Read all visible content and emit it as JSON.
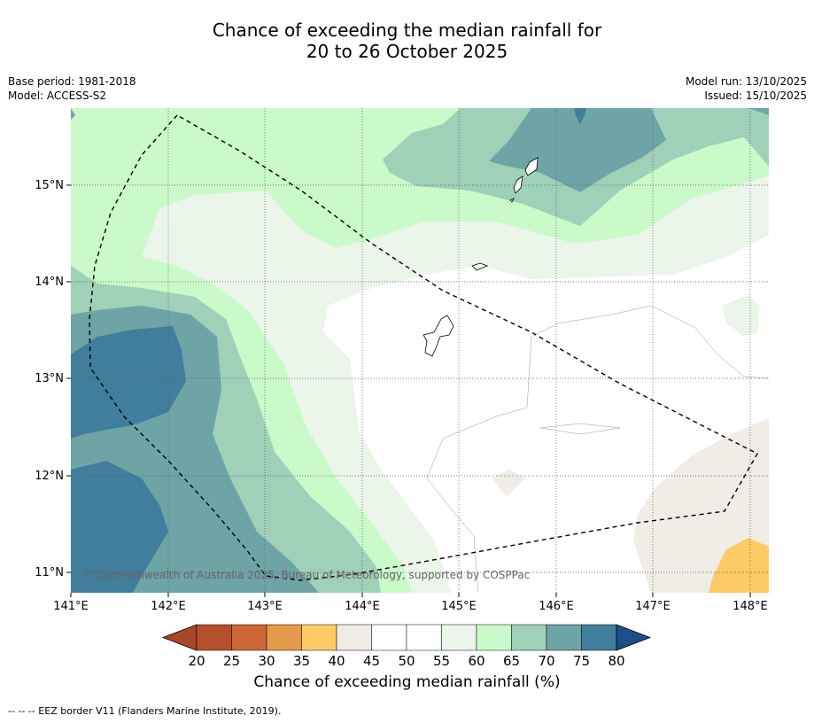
{
  "title": {
    "line1": "Chance of exceeding the median rainfall for",
    "line2": "20 to 26 October 2025"
  },
  "meta": {
    "base_period": "Base period: 1981-2018",
    "model": "Model: ACCESS-S2",
    "model_run": "Model run: 13/10/2025",
    "issued": "Issued: 15/10/2025"
  },
  "map": {
    "copyright": "© Commonwealth of Australia 2025, Bureau of Meteorology, supported by COSPPac",
    "lon_labels": [
      "141°E",
      "142°E",
      "143°E",
      "144°E",
      "145°E",
      "146°E",
      "147°E",
      "148°E"
    ],
    "lat_labels": [
      "15°N",
      "14°N",
      "13°N",
      "12°N",
      "11°N"
    ],
    "lon_range": [
      141,
      148.2
    ],
    "lat_range": [
      10.8,
      15.8
    ]
  },
  "colorbar": {
    "label": "Chance of exceeding median rainfall (%)",
    "ticks": [
      "20",
      "25",
      "30",
      "35",
      "40",
      "45",
      "50",
      "55",
      "60",
      "65",
      "70",
      "75",
      "80"
    ],
    "colors": [
      "#a8472a",
      "#b5502c",
      "#cd6735",
      "#e39a4b",
      "#fdcb65",
      "#f0ece6",
      "#ffffff",
      "#ffffff",
      "#ebf5ea",
      "#caf9ca",
      "#9fd0b8",
      "#6ea4a6",
      "#417d9c",
      "#1c4f86"
    ]
  },
  "footer": {
    "eez": "--  --  -- EEZ border V11 (Flanders Marine Institute, 2019)."
  }
}
